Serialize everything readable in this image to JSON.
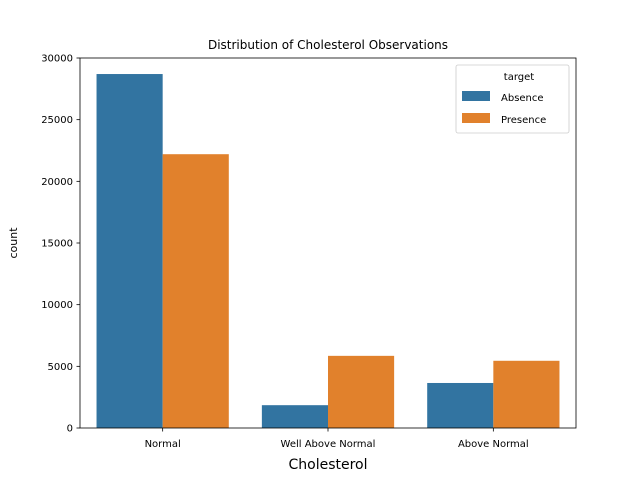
{
  "chart_data": {
    "type": "bar",
    "title": "Distribution of Cholesterol Observations",
    "xlabel": "Cholesterol",
    "ylabel": "count",
    "categories": [
      "Normal",
      "Well Above Normal",
      "Above Normal"
    ],
    "series": [
      {
        "name": "Absence",
        "values": [
          28700,
          1850,
          3650
        ],
        "color": "#3274a1"
      },
      {
        "name": "Presence",
        "values": [
          22200,
          5850,
          5450
        ],
        "color": "#e1812c"
      }
    ],
    "ylim": [
      0,
      30000
    ],
    "yticks": [
      0,
      5000,
      10000,
      15000,
      20000,
      25000,
      30000
    ],
    "legend": {
      "title": "target",
      "placement": "top-right"
    },
    "grid": false
  }
}
